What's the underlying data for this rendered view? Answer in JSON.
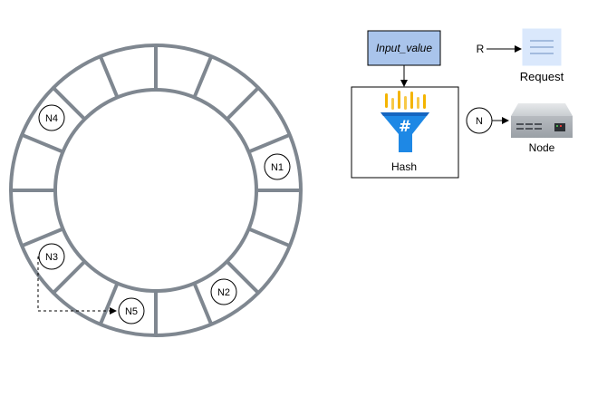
{
  "ring": {
    "segments": 16,
    "nodes": [
      {
        "label": "N1"
      },
      {
        "label": "N2"
      },
      {
        "label": "N3"
      },
      {
        "label": "N4"
      },
      {
        "label": "N5"
      }
    ]
  },
  "hash_box": {
    "input_label": "Input_value",
    "caption": "Hash",
    "icon": "hash-funnel-icon"
  },
  "legend": {
    "request": {
      "marker": "R",
      "caption": "Request",
      "icon": "document-lines-icon"
    },
    "node": {
      "marker": "N",
      "caption": "Node",
      "icon": "server-icon"
    }
  },
  "colors": {
    "ring_stroke": "#7f8790",
    "input_fill": "#a9c4eb",
    "request_fill": "#dae8fc",
    "request_lines": "#6c8ebf",
    "funnel_blue": "#1e88e5",
    "funnel_gold": "#f4b400",
    "server_body": "#bfc3c7"
  }
}
